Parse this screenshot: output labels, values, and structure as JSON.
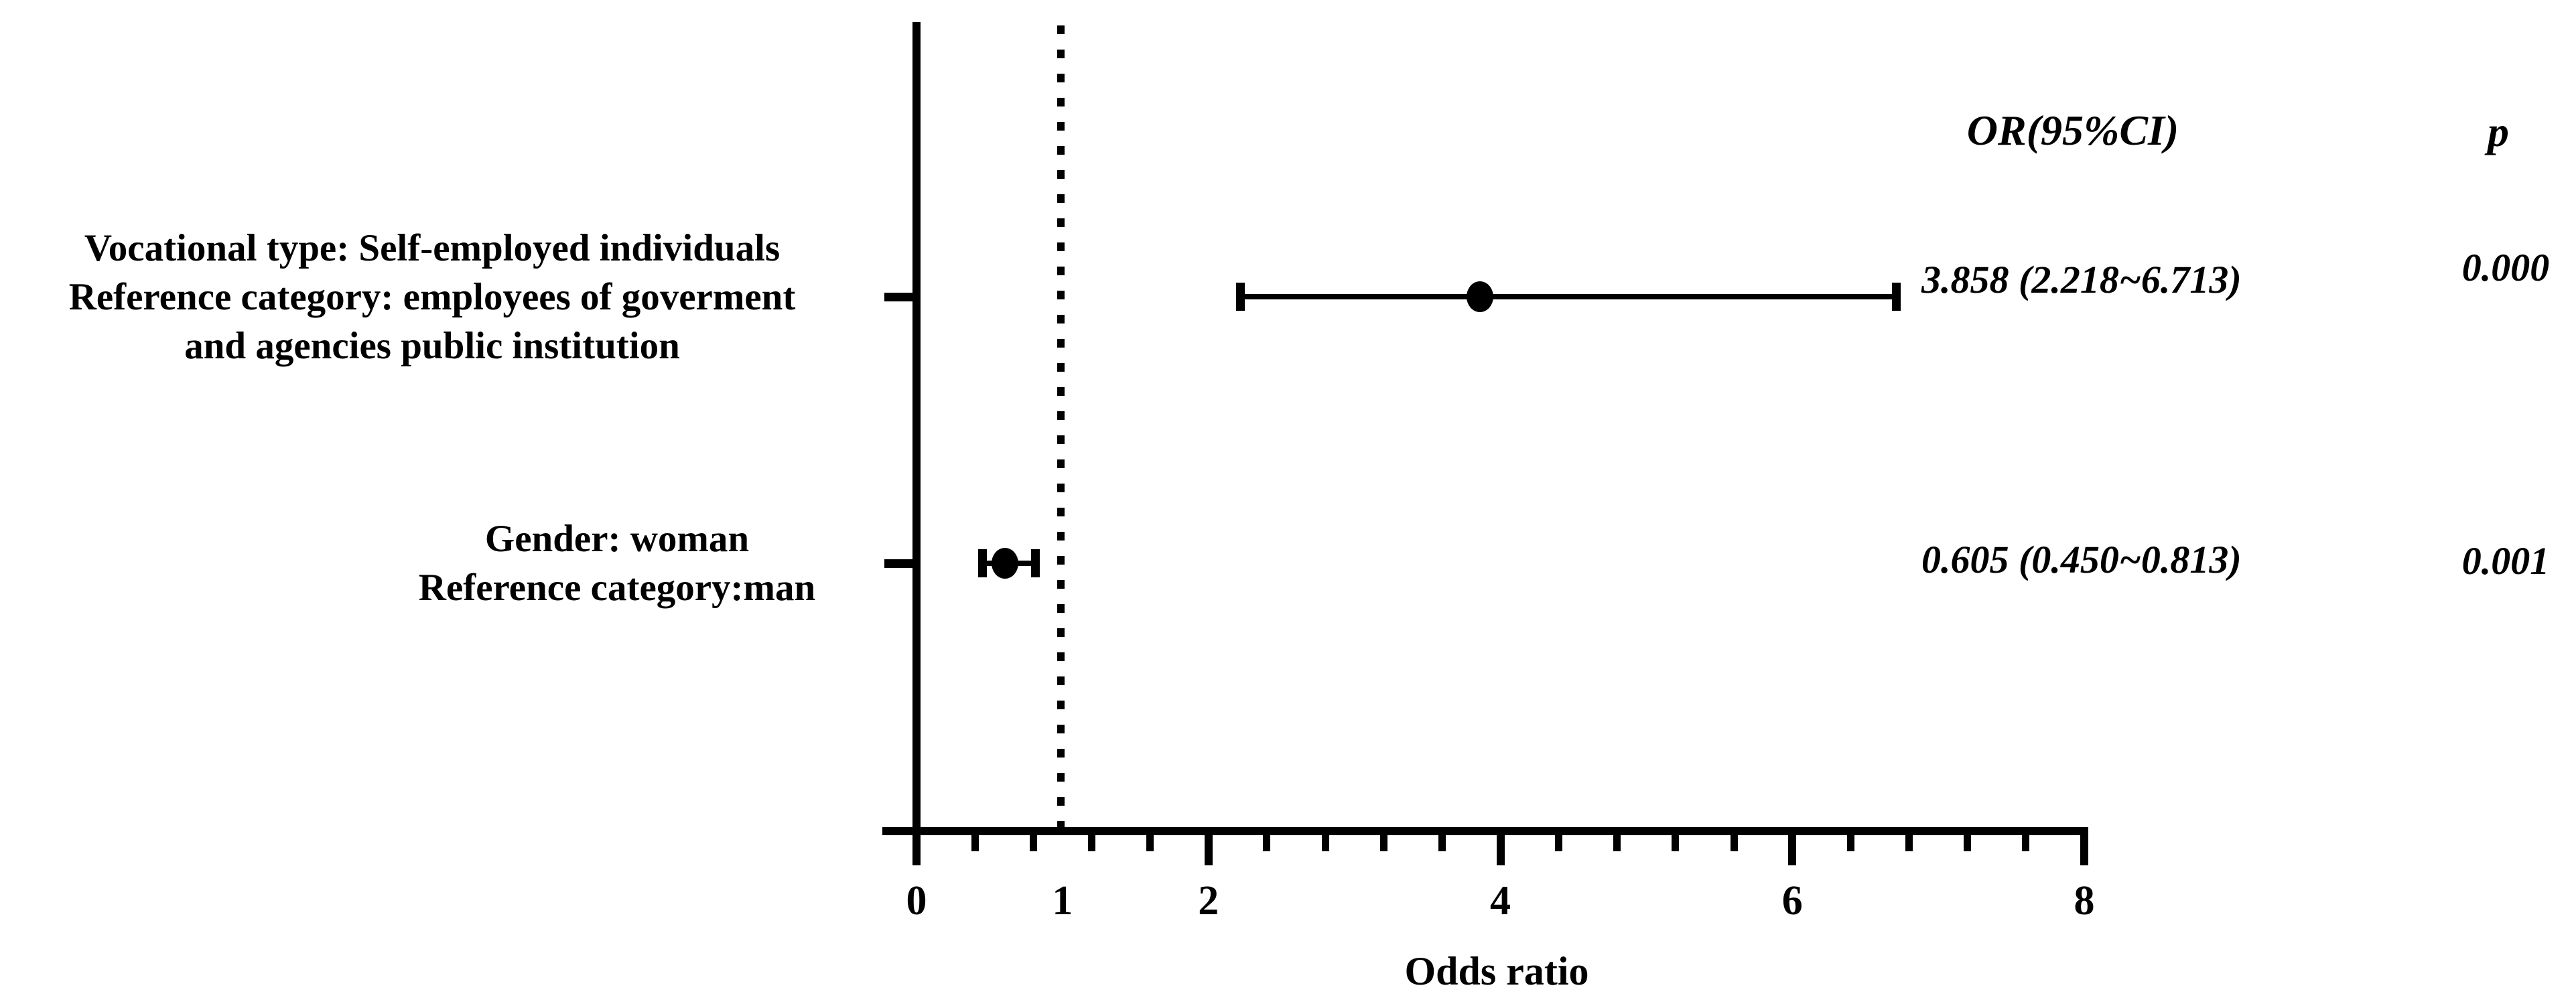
{
  "figure": {
    "background_color": "#ffffff",
    "ink_color": "#000000"
  },
  "chart_data": {
    "type": "scatter",
    "subtype": "forest_plot_odds_ratios_with_95ci",
    "title": "",
    "xlabel": "Odds ratio",
    "ylabel": "",
    "xlim": [
      0,
      8
    ],
    "x_tick_labels": [
      0,
      1,
      2,
      4,
      6,
      8
    ],
    "x_major_ticks": [
      0,
      2,
      4,
      6,
      8
    ],
    "x_minor_tick_step": 0.4,
    "reference_line_x": 1,
    "reference_line_style": "dotted",
    "grid": false,
    "legend": "none",
    "columns": {
      "or_header": "OR(95%CI)",
      "p_header": "p"
    },
    "rows": [
      {
        "label_lines": [
          "Vocational type: Self-employed individuals",
          "Reference category: employees of goverment",
          "and agencies public institution"
        ],
        "or": 3.858,
        "ci_low": 2.218,
        "ci_high": 6.713,
        "or_ci_text": "3.858 (2.218~6.713)",
        "p_text": "0.000"
      },
      {
        "label_lines": [
          "Gender: woman",
          "Reference category:man"
        ],
        "or": 0.605,
        "ci_low": 0.45,
        "ci_high": 0.813,
        "or_ci_text": "0.605 (0.450~0.813)",
        "p_text": "0.001"
      }
    ]
  }
}
